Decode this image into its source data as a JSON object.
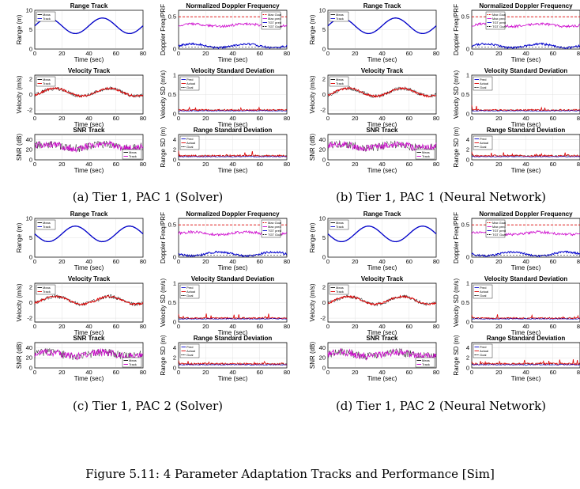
{
  "caption": "Figure 5.11: 4 Parameter Adaptation Tracks and Performance [Sim]",
  "colors": {
    "meas": "#000000",
    "track_range": "#0000cc",
    "track_vel": "#dd0000",
    "track_snr": "#cc00cc",
    "max_goal": "#dd0000",
    "max_pred": "#cc00cc",
    "tgt_pred": "#0000cc",
    "tgt_goal": "#000000",
    "pred": "#0000cc",
    "actual": "#dd0000",
    "goal": "#000000"
  },
  "subfigures": [
    {
      "caption": "(a) Tier 1, PAC 1 (Solver)"
    },
    {
      "caption": "(b) Tier 1, PAC 1 (Neural Network)"
    },
    {
      "caption": "(c) Tier 1, PAC 2 (Solver)"
    },
    {
      "caption": "(d) Tier 1, PAC 2 (Neural Network)"
    }
  ],
  "panels": {
    "range_track": {
      "title": "Range Track",
      "ylabel": "Range (m)",
      "xlabel": "Time (sec)",
      "xticks": [
        "0",
        "20",
        "40",
        "60",
        "80"
      ],
      "yticks": [
        "0",
        "5",
        "10"
      ],
      "legend": [
        "Meas",
        "Track"
      ]
    },
    "velocity_track": {
      "title": "Velocity Track",
      "ylabel": "Velocity (m/s)",
      "xlabel": "Time (sec)",
      "xticks": [
        "0",
        "20",
        "40",
        "60",
        "80"
      ],
      "yticks": [
        "-2",
        "0",
        "2"
      ],
      "legend": [
        "Meas",
        "Track"
      ]
    },
    "snr_track": {
      "title": "SNR Track",
      "ylabel": "SNR (dB)",
      "xlabel": "Time (sec)",
      "xticks": [
        "0",
        "20",
        "40",
        "60",
        "80"
      ],
      "yticks": [
        "0",
        "20",
        "40"
      ],
      "legend": [
        "Meas",
        "Track"
      ]
    },
    "doppler": {
      "title": "Normalized Doppler Frequency",
      "ylabel": "Doppler Freq/PRF",
      "xlabel": "Time (sec)",
      "xticks": [
        "0",
        "20",
        "40",
        "60",
        "80"
      ],
      "yticks": [
        "0",
        "0.5"
      ],
      "legend": [
        "Max Goal",
        "Max pred",
        "TGT pred",
        "TGT Goal"
      ]
    },
    "velocity_sd": {
      "title": "Velocity Standard Deviation",
      "ylabel": "Velocity SD (m/s)",
      "xlabel": "Time (sec)",
      "xticks": [
        "0",
        "20",
        "40",
        "60",
        "80"
      ],
      "yticks": [
        "0",
        "0.5",
        "1"
      ],
      "legend": [
        "Pred",
        "Actual",
        "Goal"
      ]
    },
    "range_sd": {
      "title": "Range Standard Deviation",
      "ylabel": "Range SD (m)",
      "xlabel": "Time (sec)",
      "xticks": [
        "0",
        "20",
        "40",
        "60",
        "80"
      ],
      "yticks": [
        "0",
        "2",
        "4"
      ],
      "legend": [
        "Pred",
        "Actual",
        "Goal"
      ]
    }
  },
  "chart_data": [
    {
      "type": "line",
      "panel": "range_track",
      "xlim": [
        0,
        80
      ],
      "ylim": [
        0,
        10
      ],
      "series": [
        {
          "name": "Meas",
          "values": "sinusoid ~4 to 8 m, period ~40 s"
        },
        {
          "name": "Track",
          "values": "sinusoid ~4 to 8 m, period ~40 s"
        }
      ]
    },
    {
      "type": "line",
      "panel": "velocity_track",
      "xlim": [
        0,
        80
      ],
      "ylim": [
        -2,
        2
      ],
      "series": [
        {
          "name": "Meas"
        },
        {
          "name": "Track"
        }
      ]
    },
    {
      "type": "line",
      "panel": "snr_track",
      "xlim": [
        0,
        80
      ],
      "ylim": [
        0,
        50
      ],
      "series": [
        {
          "name": "Meas"
        },
        {
          "name": "Track"
        }
      ]
    },
    {
      "type": "line",
      "panel": "doppler",
      "xlim": [
        0,
        80
      ],
      "ylim": [
        0,
        0.6
      ],
      "series": [
        {
          "name": "Max Goal",
          "values": [
            0.5
          ]
        },
        {
          "name": "Max pred"
        },
        {
          "name": "TGT pred"
        },
        {
          "name": "TGT Goal"
        }
      ]
    },
    {
      "type": "line",
      "panel": "velocity_sd",
      "xlim": [
        0,
        80
      ],
      "ylim": [
        0,
        1
      ],
      "series": [
        {
          "name": "Pred"
        },
        {
          "name": "Actual"
        },
        {
          "name": "Goal"
        }
      ]
    },
    {
      "type": "line",
      "panel": "range_sd",
      "xlim": [
        0,
        80
      ],
      "ylim": [
        0,
        5
      ],
      "series": [
        {
          "name": "Pred"
        },
        {
          "name": "Actual"
        },
        {
          "name": "Goal"
        }
      ]
    }
  ]
}
